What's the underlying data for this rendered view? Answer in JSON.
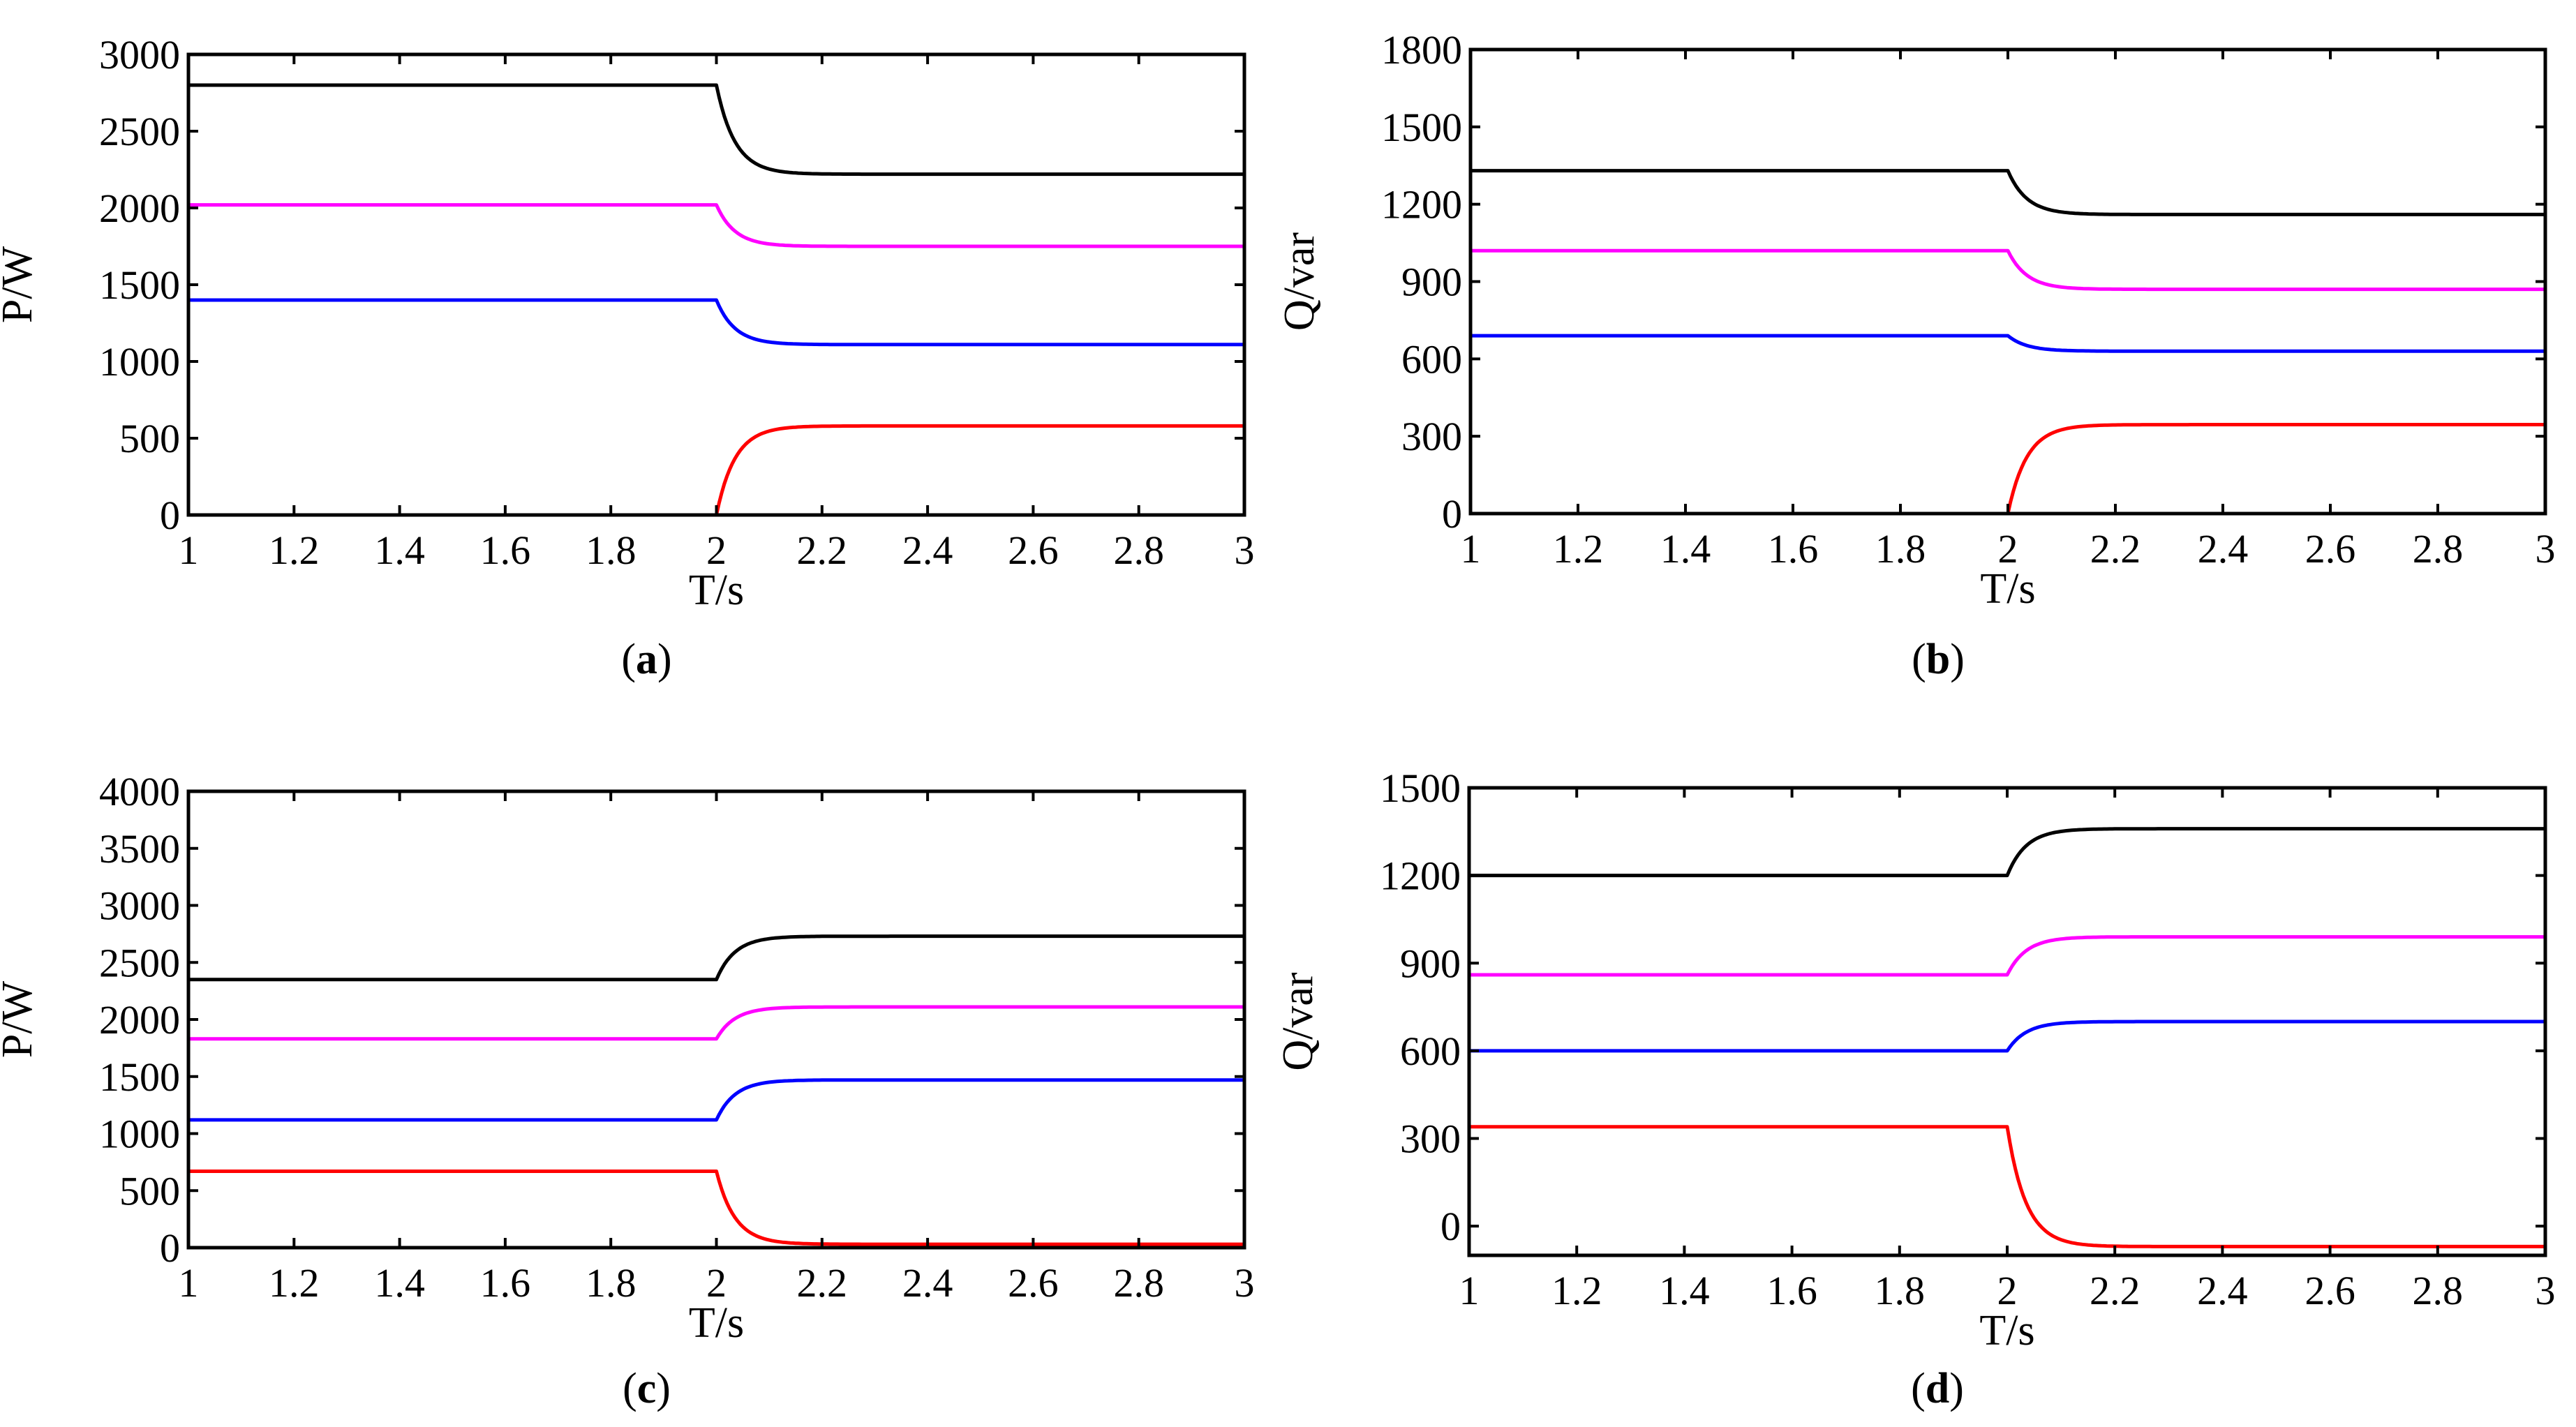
{
  "colors": {
    "black": "#000000",
    "magenta": "#ff00ff",
    "blue": "#0000ff",
    "red": "#ff0000"
  },
  "chart_data": [
    {
      "id": "a",
      "type": "line",
      "caption_letter": "a",
      "xlabel": "T/s",
      "ylabel": "P/W",
      "xlim": [
        1,
        3
      ],
      "ylim": [
        0,
        3000
      ],
      "xticks": [
        1,
        1.2,
        1.4,
        1.6,
        1.8,
        2,
        2.2,
        2.4,
        2.6,
        2.8,
        3
      ],
      "xtick_labels": [
        "1",
        "1.2",
        "1.4",
        "1.6",
        "1.8",
        "2",
        "2.2",
        "2.4",
        "2.6",
        "2.8",
        "3"
      ],
      "yticks": [
        0,
        500,
        1000,
        1500,
        2000,
        2500,
        3000
      ],
      "ytick_labels": [
        "0",
        "500",
        "1000",
        "1500",
        "2000",
        "2500",
        "3000"
      ],
      "step_time": 2.0,
      "series": [
        {
          "name": "black",
          "color": "#000000",
          "before": 2800,
          "after": 2220
        },
        {
          "name": "magenta",
          "color": "#ff00ff",
          "before": 2020,
          "after": 1750
        },
        {
          "name": "blue",
          "color": "#0000ff",
          "before": 1400,
          "after": 1110
        },
        {
          "name": "red",
          "color": "#ff0000",
          "before": 0,
          "after": 580
        }
      ]
    },
    {
      "id": "b",
      "type": "line",
      "caption_letter": "b",
      "xlabel": "T/s",
      "ylabel": "Q/var",
      "xlim": [
        1,
        3
      ],
      "ylim": [
        0,
        1800
      ],
      "xticks": [
        1,
        1.2,
        1.4,
        1.6,
        1.8,
        2,
        2.2,
        2.4,
        2.6,
        2.8,
        3
      ],
      "xtick_labels": [
        "1",
        "1.2",
        "1.4",
        "1.6",
        "1.8",
        "2",
        "2.2",
        "2.4",
        "2.6",
        "2.8",
        "3"
      ],
      "yticks": [
        0,
        300,
        600,
        900,
        1200,
        1500,
        1800
      ],
      "ytick_labels": [
        "0",
        "300",
        "600",
        "900",
        "1200",
        "1500",
        "1800"
      ],
      "step_time": 2.0,
      "series": [
        {
          "name": "black",
          "color": "#000000",
          "before": 1330,
          "after": 1160
        },
        {
          "name": "magenta",
          "color": "#ff00ff",
          "before": 1020,
          "after": 870
        },
        {
          "name": "blue",
          "color": "#0000ff",
          "before": 690,
          "after": 630
        },
        {
          "name": "red",
          "color": "#ff0000",
          "before": 0,
          "after": 345
        }
      ]
    },
    {
      "id": "c",
      "type": "line",
      "caption_letter": "c",
      "xlabel": "T/s",
      "ylabel": "P/W",
      "xlim": [
        1,
        3
      ],
      "ylim": [
        0,
        4000
      ],
      "xticks": [
        1,
        1.2,
        1.4,
        1.6,
        1.8,
        2,
        2.2,
        2.4,
        2.6,
        2.8,
        3
      ],
      "xtick_labels": [
        "1",
        "1.2",
        "1.4",
        "1.6",
        "1.8",
        "2",
        "2.2",
        "2.4",
        "2.6",
        "2.8",
        "3"
      ],
      "yticks": [
        0,
        500,
        1000,
        1500,
        2000,
        2500,
        3000,
        3500,
        4000
      ],
      "ytick_labels": [
        "0",
        "500",
        "1000",
        "1500",
        "2000",
        "2500",
        "3000",
        "3500",
        "4000"
      ],
      "step_time": 2.0,
      "series": [
        {
          "name": "black",
          "color": "#000000",
          "before": 2350,
          "after": 2730
        },
        {
          "name": "magenta",
          "color": "#ff00ff",
          "before": 1830,
          "after": 2110
        },
        {
          "name": "blue",
          "color": "#0000ff",
          "before": 1120,
          "after": 1470
        },
        {
          "name": "red",
          "color": "#ff0000",
          "before": 670,
          "after": 30
        }
      ]
    },
    {
      "id": "d",
      "type": "line",
      "caption_letter": "d",
      "xlabel": "T/s",
      "ylabel": "Q/var",
      "xlim": [
        1,
        3
      ],
      "ylim": [
        -100,
        1500
      ],
      "xticks": [
        1,
        1.2,
        1.4,
        1.6,
        1.8,
        2,
        2.2,
        2.4,
        2.6,
        2.8,
        3
      ],
      "xtick_labels": [
        "1",
        "1.2",
        "1.4",
        "1.6",
        "1.8",
        "2",
        "2.2",
        "2.4",
        "2.6",
        "2.8",
        "3"
      ],
      "yticks": [
        0,
        300,
        600,
        900,
        1200,
        1500
      ],
      "ytick_labels": [
        "0",
        "300",
        "600",
        "900",
        "1200",
        "1500"
      ],
      "step_time": 2.0,
      "series": [
        {
          "name": "black",
          "color": "#000000",
          "before": 1200,
          "after": 1360
        },
        {
          "name": "magenta",
          "color": "#ff00ff",
          "before": 860,
          "after": 990
        },
        {
          "name": "blue",
          "color": "#0000ff",
          "before": 600,
          "after": 700
        },
        {
          "name": "red",
          "color": "#ff0000",
          "before": 340,
          "after": -70
        }
      ]
    }
  ]
}
